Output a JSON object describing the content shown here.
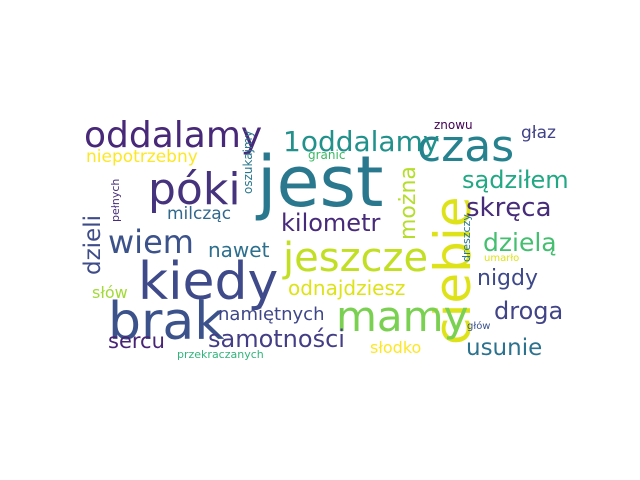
{
  "words": [
    {
      "text": "jest",
      "color": "#2a788e"
    },
    {
      "text": "kiedy",
      "color": "#3e4a89"
    },
    {
      "text": "brak",
      "color": "#3b528b"
    },
    {
      "text": "ciebie",
      "color": "#dde318"
    },
    {
      "text": "czas",
      "color": "#26828e"
    },
    {
      "text": "mamy",
      "color": "#7ad151"
    },
    {
      "text": "oddalamy",
      "color": "#482878"
    },
    {
      "text": "póki",
      "color": "#46337e"
    },
    {
      "text": "jeszcze",
      "color": "#c2df23"
    },
    {
      "text": "wiem",
      "color": "#3b528b"
    },
    {
      "text": "1oddalamy",
      "color": "#21918c"
    },
    {
      "text": "sądziłem",
      "color": "#22a884"
    },
    {
      "text": "skręca",
      "color": "#472c7a"
    },
    {
      "text": "dzielą",
      "color": "#44bf70"
    },
    {
      "text": "kilometr",
      "color": "#472a7a"
    },
    {
      "text": "dzieli",
      "color": "#3e4c8a"
    },
    {
      "text": "można",
      "color": "#b5de2b"
    },
    {
      "text": "odnajdziesz",
      "color": "#dde318"
    },
    {
      "text": "nigdy",
      "color": "#3e4989"
    },
    {
      "text": "droga",
      "color": "#414487"
    },
    {
      "text": "samotności",
      "color": "#433e85"
    },
    {
      "text": "usunie",
      "color": "#2c728e"
    },
    {
      "text": "nawet",
      "color": "#2d708e"
    },
    {
      "text": "sercu",
      "color": "#482475"
    },
    {
      "text": "namiętnych",
      "color": "#3f4788"
    },
    {
      "text": "milcząc",
      "color": "#31688e"
    },
    {
      "text": "niepotrzebny",
      "color": "#fde725"
    },
    {
      "text": "głaz",
      "color": "#404387"
    },
    {
      "text": "słów",
      "color": "#a2da37"
    },
    {
      "text": "słodko",
      "color": "#fde725"
    },
    {
      "text": "znowu",
      "color": "#440154"
    },
    {
      "text": "granic",
      "color": "#3ab963"
    },
    {
      "text": "oszukajmy",
      "color": "#2a788e"
    },
    {
      "text": "pełnych",
      "color": "#472d7b"
    },
    {
      "text": "przekraczanych",
      "color": "#31b57b"
    },
    {
      "text": "dreszczy",
      "color": "#2a768e"
    },
    {
      "text": "umarło",
      "color": "#dde318"
    },
    {
      "text": "głów",
      "color": "#3b528b"
    }
  ]
}
